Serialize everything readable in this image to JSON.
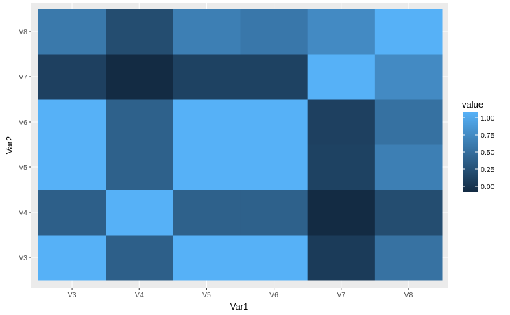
{
  "chart_data": {
    "type": "heatmap",
    "xlabel": "Var1",
    "ylabel": "Var2",
    "x_categories": [
      "V3",
      "V4",
      "V5",
      "V6",
      "V7",
      "V8"
    ],
    "y_categories": [
      "V3",
      "V4",
      "V5",
      "V6",
      "V7",
      "V8"
    ],
    "values": [
      [
        1.0,
        0.39,
        1.0,
        1.0,
        0.12,
        0.53
      ],
      [
        0.39,
        1.0,
        0.4,
        0.4,
        0.0,
        0.25
      ],
      [
        1.0,
        0.4,
        1.0,
        1.0,
        0.17,
        0.63
      ],
      [
        1.0,
        0.4,
        1.0,
        1.0,
        0.16,
        0.52
      ],
      [
        0.16,
        0.0,
        0.17,
        0.17,
        1.0,
        0.71
      ],
      [
        0.58,
        0.25,
        0.63,
        0.57,
        0.71,
        1.0
      ]
    ],
    "value_range": [
      0,
      1
    ],
    "color_low": "#132B43",
    "color_high": "#56B1F7",
    "panel_background": "#EBEBEB",
    "grid_color": "#FFFFFF",
    "legend": {
      "title": "value",
      "position": "right",
      "ticks": [
        0.0,
        0.25,
        0.5,
        0.75,
        1.0
      ],
      "tick_labels": [
        "0.00",
        "0.25",
        "0.50",
        "0.75",
        "1.00"
      ]
    }
  }
}
